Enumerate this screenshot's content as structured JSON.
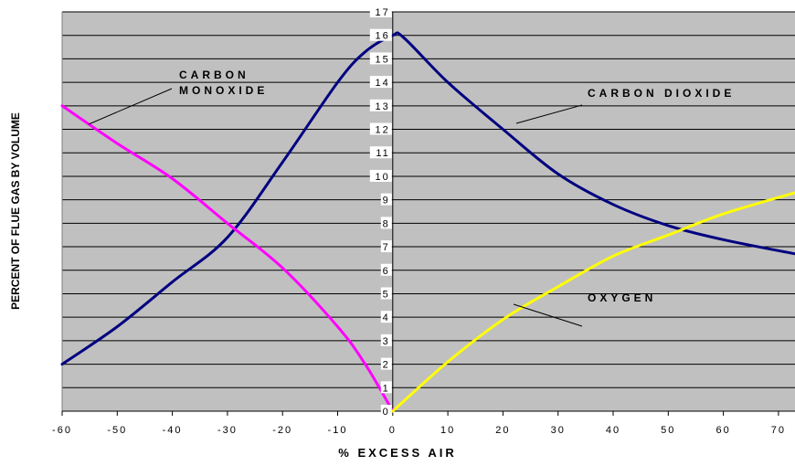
{
  "chart_data": {
    "type": "line",
    "xlabel": "% EXCESS AIR",
    "ylabel": "PERCENT OF FLUE GAS BY VOLUME",
    "xlim": [
      -60,
      73
    ],
    "ylim": [
      0,
      17
    ],
    "xticks": [
      "-60",
      "-50",
      "-40",
      "-30",
      "-20",
      "-10",
      "0",
      "10",
      "20",
      "30",
      "40",
      "50",
      "60",
      "70"
    ],
    "xtick_values": [
      -60,
      -50,
      -40,
      -30,
      -20,
      -10,
      0,
      10,
      20,
      30,
      40,
      50,
      60,
      70
    ],
    "yticks": [
      "0",
      "1",
      "2",
      "3",
      "4",
      "5",
      "6",
      "7",
      "8",
      "9",
      "10",
      "11",
      "12",
      "13",
      "14",
      "15",
      "16",
      "17"
    ],
    "grid": "horizontal",
    "plot_background": "#c0c0c0",
    "series": [
      {
        "color": "#000080",
        "x": [
          -60,
          -50,
          -40,
          -30,
          -20,
          -10,
          -5,
          0,
          2,
          10,
          20,
          30,
          40,
          50,
          60,
          73
        ],
        "y": [
          2.0,
          3.6,
          5.5,
          7.4,
          10.6,
          14.0,
          15.3,
          16.0,
          15.9,
          14.0,
          12.0,
          10.1,
          8.8,
          7.9,
          7.3,
          6.7
        ]
      },
      {
        "color": "#ff00ff",
        "x": [
          -60,
          -50,
          -40,
          -30,
          -20,
          -10,
          -5,
          0
        ],
        "y": [
          13.0,
          11.4,
          9.9,
          8.0,
          6.1,
          3.6,
          2.0,
          0.0
        ]
      },
      {
        "color": "#ffff00",
        "x": [
          0,
          10,
          20,
          30,
          40,
          50,
          60,
          73
        ],
        "y": [
          0.0,
          2.1,
          3.9,
          5.3,
          6.6,
          7.5,
          8.4,
          9.3
        ]
      }
    ],
    "annotations": [
      {
        "lines": [
          "CARBON",
          "MONOXIDE"
        ],
        "target_series": 1
      },
      {
        "lines": [
          "CARBON DIOXIDE"
        ],
        "target_series": 0
      },
      {
        "lines": [
          "OXYGEN"
        ],
        "target_series": 2
      }
    ]
  }
}
